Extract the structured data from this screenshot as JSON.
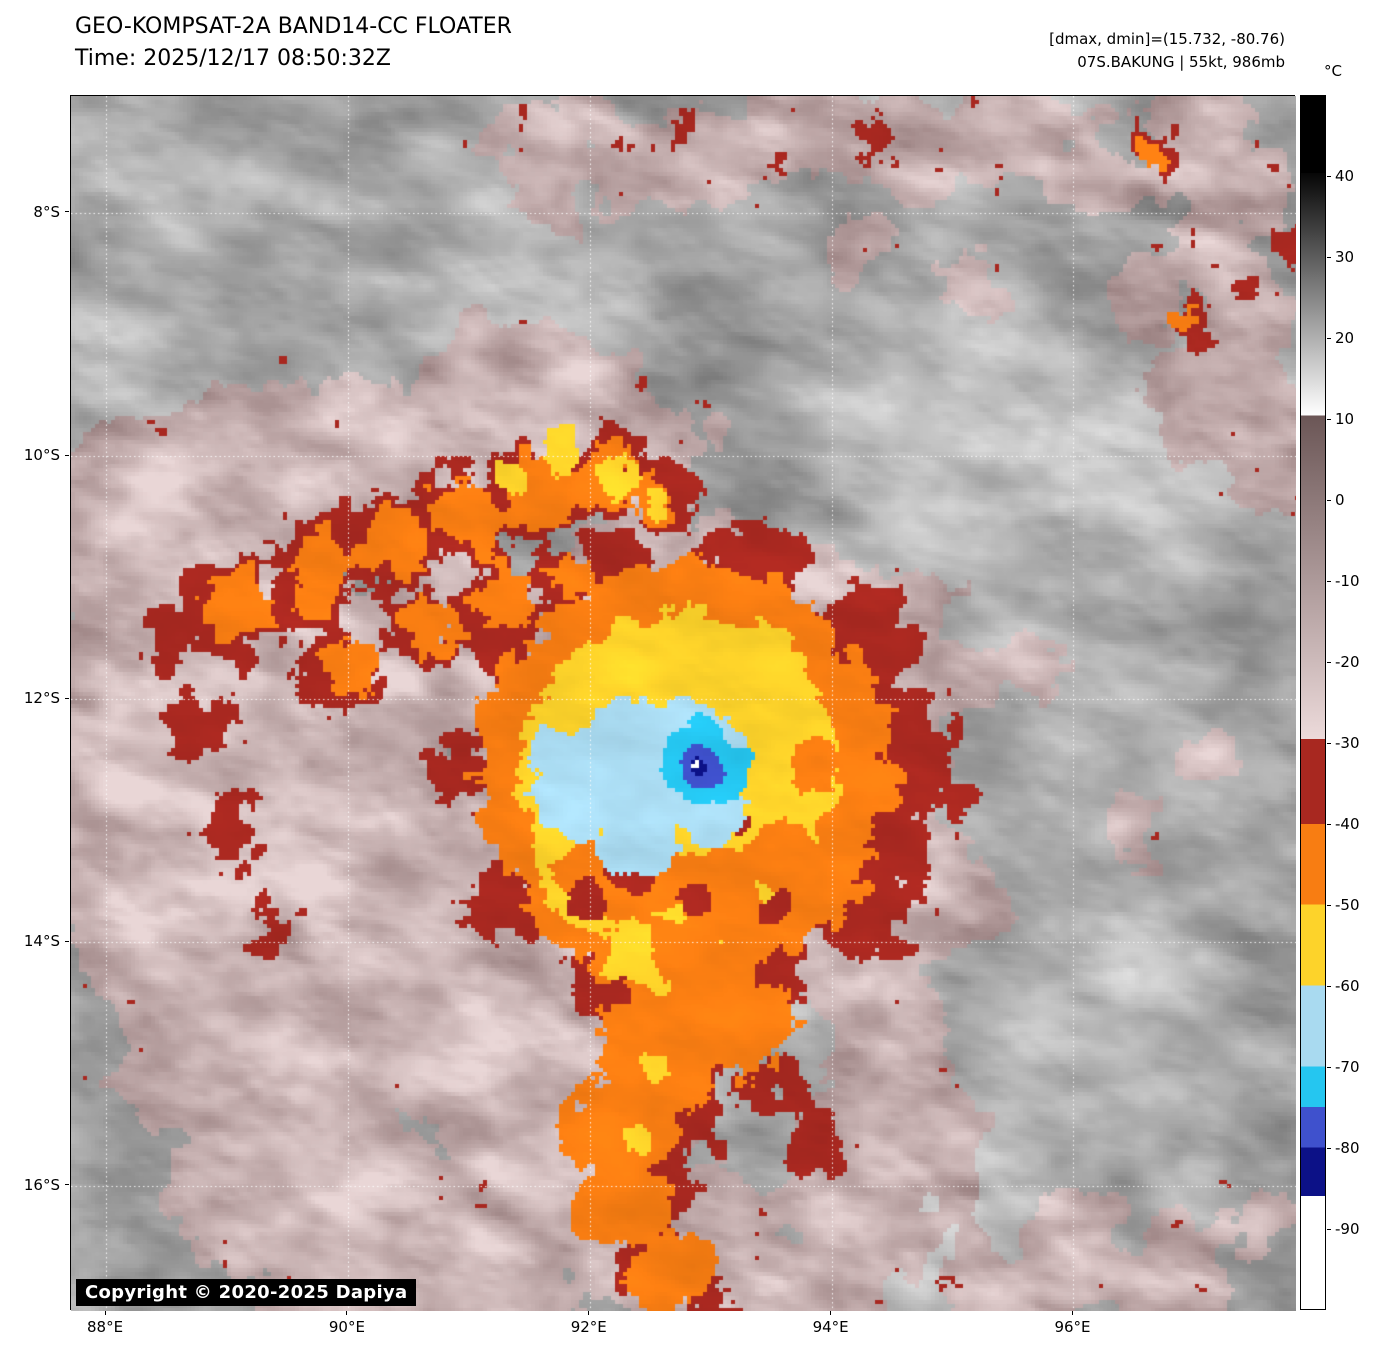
{
  "header": {
    "title": "GEO-KOMPSAT-2A BAND14-CC FLOATER",
    "time": "Time: 2025/12/17 08:50:32Z",
    "range_info": "[dmax, dmin]=(15.732, -80.76)",
    "storm_info": "07S.BAKUNG | 55kt, 986mb"
  },
  "colorbar": {
    "unit_label": "°C",
    "value_max": 50,
    "value_min": -100,
    "ticks": [
      {
        "value": 40,
        "label": "40"
      },
      {
        "value": 30,
        "label": "30"
      },
      {
        "value": 20,
        "label": "20"
      },
      {
        "value": 10,
        "label": "10"
      },
      {
        "value": 0,
        "label": "0"
      },
      {
        "value": -10,
        "label": "-10"
      },
      {
        "value": -20,
        "label": "-20"
      },
      {
        "value": -30,
        "label": "-30"
      },
      {
        "value": -40,
        "label": "-40"
      },
      {
        "value": -50,
        "label": "-50"
      },
      {
        "value": -60,
        "label": "-60"
      },
      {
        "value": -70,
        "label": "-70"
      },
      {
        "value": -80,
        "label": "-80"
      },
      {
        "value": -90,
        "label": "-90"
      }
    ],
    "segments": [
      {
        "from": 50,
        "to": 40.5,
        "top": "#000000",
        "bottom": "#000000"
      },
      {
        "from": 40.5,
        "to": 10.5,
        "top": "#060606",
        "bottom": "#ffffff"
      },
      {
        "from": 10.5,
        "to": -29.5,
        "top": "#6b5656",
        "bottom": "#ecdada"
      },
      {
        "from": -29.5,
        "to": -40,
        "top": "#a82820",
        "bottom": "#a82820"
      },
      {
        "from": -40,
        "to": -50,
        "top": "#f87d12",
        "bottom": "#f87d12"
      },
      {
        "from": -50,
        "to": -60,
        "top": "#fdd32a",
        "bottom": "#fdd32a"
      },
      {
        "from": -60,
        "to": -70,
        "top": "#a9daf0",
        "bottom": "#a9daf0"
      },
      {
        "from": -70,
        "to": -75,
        "top": "#25c6f0",
        "bottom": "#25c6f0"
      },
      {
        "from": -75,
        "to": -80,
        "top": "#3f51cd",
        "bottom": "#3f51cd"
      },
      {
        "from": -80,
        "to": -86,
        "top": "#0c1187",
        "bottom": "#0c1187"
      },
      {
        "from": -86,
        "to": -100,
        "top": "#ffffff",
        "bottom": "#ffffff"
      }
    ]
  },
  "map": {
    "lat_range": [
      -17.03,
      -7.04
    ],
    "lon_range": [
      87.71,
      97.84
    ],
    "lat_ticks": [
      {
        "value": -8,
        "label": "8°S"
      },
      {
        "value": -10,
        "label": "10°S"
      },
      {
        "value": -12,
        "label": "12°S"
      },
      {
        "value": -14,
        "label": "14°S"
      },
      {
        "value": -16,
        "label": "16°S"
      }
    ],
    "lon_ticks": [
      {
        "value": 88,
        "label": "88°E"
      },
      {
        "value": 90,
        "label": "90°E"
      },
      {
        "value": 92,
        "label": "92°E"
      },
      {
        "value": 94,
        "label": "94°E"
      },
      {
        "value": 96,
        "label": "96°E"
      }
    ],
    "copyright": "Copyright © 2020-2025 Dapiya"
  },
  "palette": {
    "bg_dark": "#474747",
    "bg_light": "#e8e8e8",
    "mauve_dark": "#7b5f5f",
    "mauve_light": "#e9d6d6",
    "dark_red": "#a82820",
    "orange": "#f87d12",
    "yellow": "#fdd32a",
    "light_blue": "#a9daf0",
    "cyan": "#25c6f0",
    "royal_blue": "#3f51cd",
    "navy": "#0c1187",
    "eye_white": "#ffffff"
  }
}
